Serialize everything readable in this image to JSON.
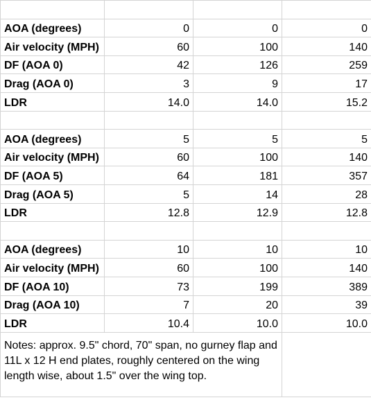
{
  "blocks": [
    {
      "rows": [
        {
          "label": "AOA (degrees)",
          "values": [
            "0",
            "0",
            "0"
          ]
        },
        {
          "label": "Air velocity (MPH)",
          "values": [
            "60",
            "100",
            "140"
          ]
        },
        {
          "label": "DF (AOA 0)",
          "values": [
            "42",
            "126",
            "259"
          ]
        },
        {
          "label": "Drag (AOA 0)",
          "values": [
            "3",
            "9",
            "17"
          ]
        },
        {
          "label": "LDR",
          "values": [
            "14.0",
            "14.0",
            "15.2"
          ]
        }
      ]
    },
    {
      "rows": [
        {
          "label": "AOA (degrees)",
          "values": [
            "5",
            "5",
            "5"
          ]
        },
        {
          "label": "Air velocity (MPH)",
          "values": [
            "60",
            "100",
            "140"
          ]
        },
        {
          "label": "DF (AOA 5)",
          "values": [
            "64",
            "181",
            "357"
          ]
        },
        {
          "label": "Drag (AOA 5)",
          "values": [
            "5",
            "14",
            "28"
          ]
        },
        {
          "label": "LDR",
          "values": [
            "12.8",
            "12.9",
            "12.8"
          ]
        }
      ]
    },
    {
      "rows": [
        {
          "label": "AOA (degrees)",
          "values": [
            "10",
            "10",
            "10"
          ]
        },
        {
          "label": "Air velocity (MPH)",
          "values": [
            "60",
            "100",
            "140"
          ]
        },
        {
          "label": "DF (AOA 10)",
          "values": [
            "73",
            "199",
            "389"
          ]
        },
        {
          "label": "Drag (AOA 10)",
          "values": [
            "7",
            "20",
            "39"
          ]
        },
        {
          "label": "LDR",
          "values": [
            "10.4",
            "10.0",
            "10.0"
          ]
        }
      ]
    }
  ],
  "notes": "Notes: approx. 9.5\" chord, 70\" span, no gurney flap and 11L x 12 H end plates, roughly centered on the wing length wise, about 1.5\" over the wing top."
}
